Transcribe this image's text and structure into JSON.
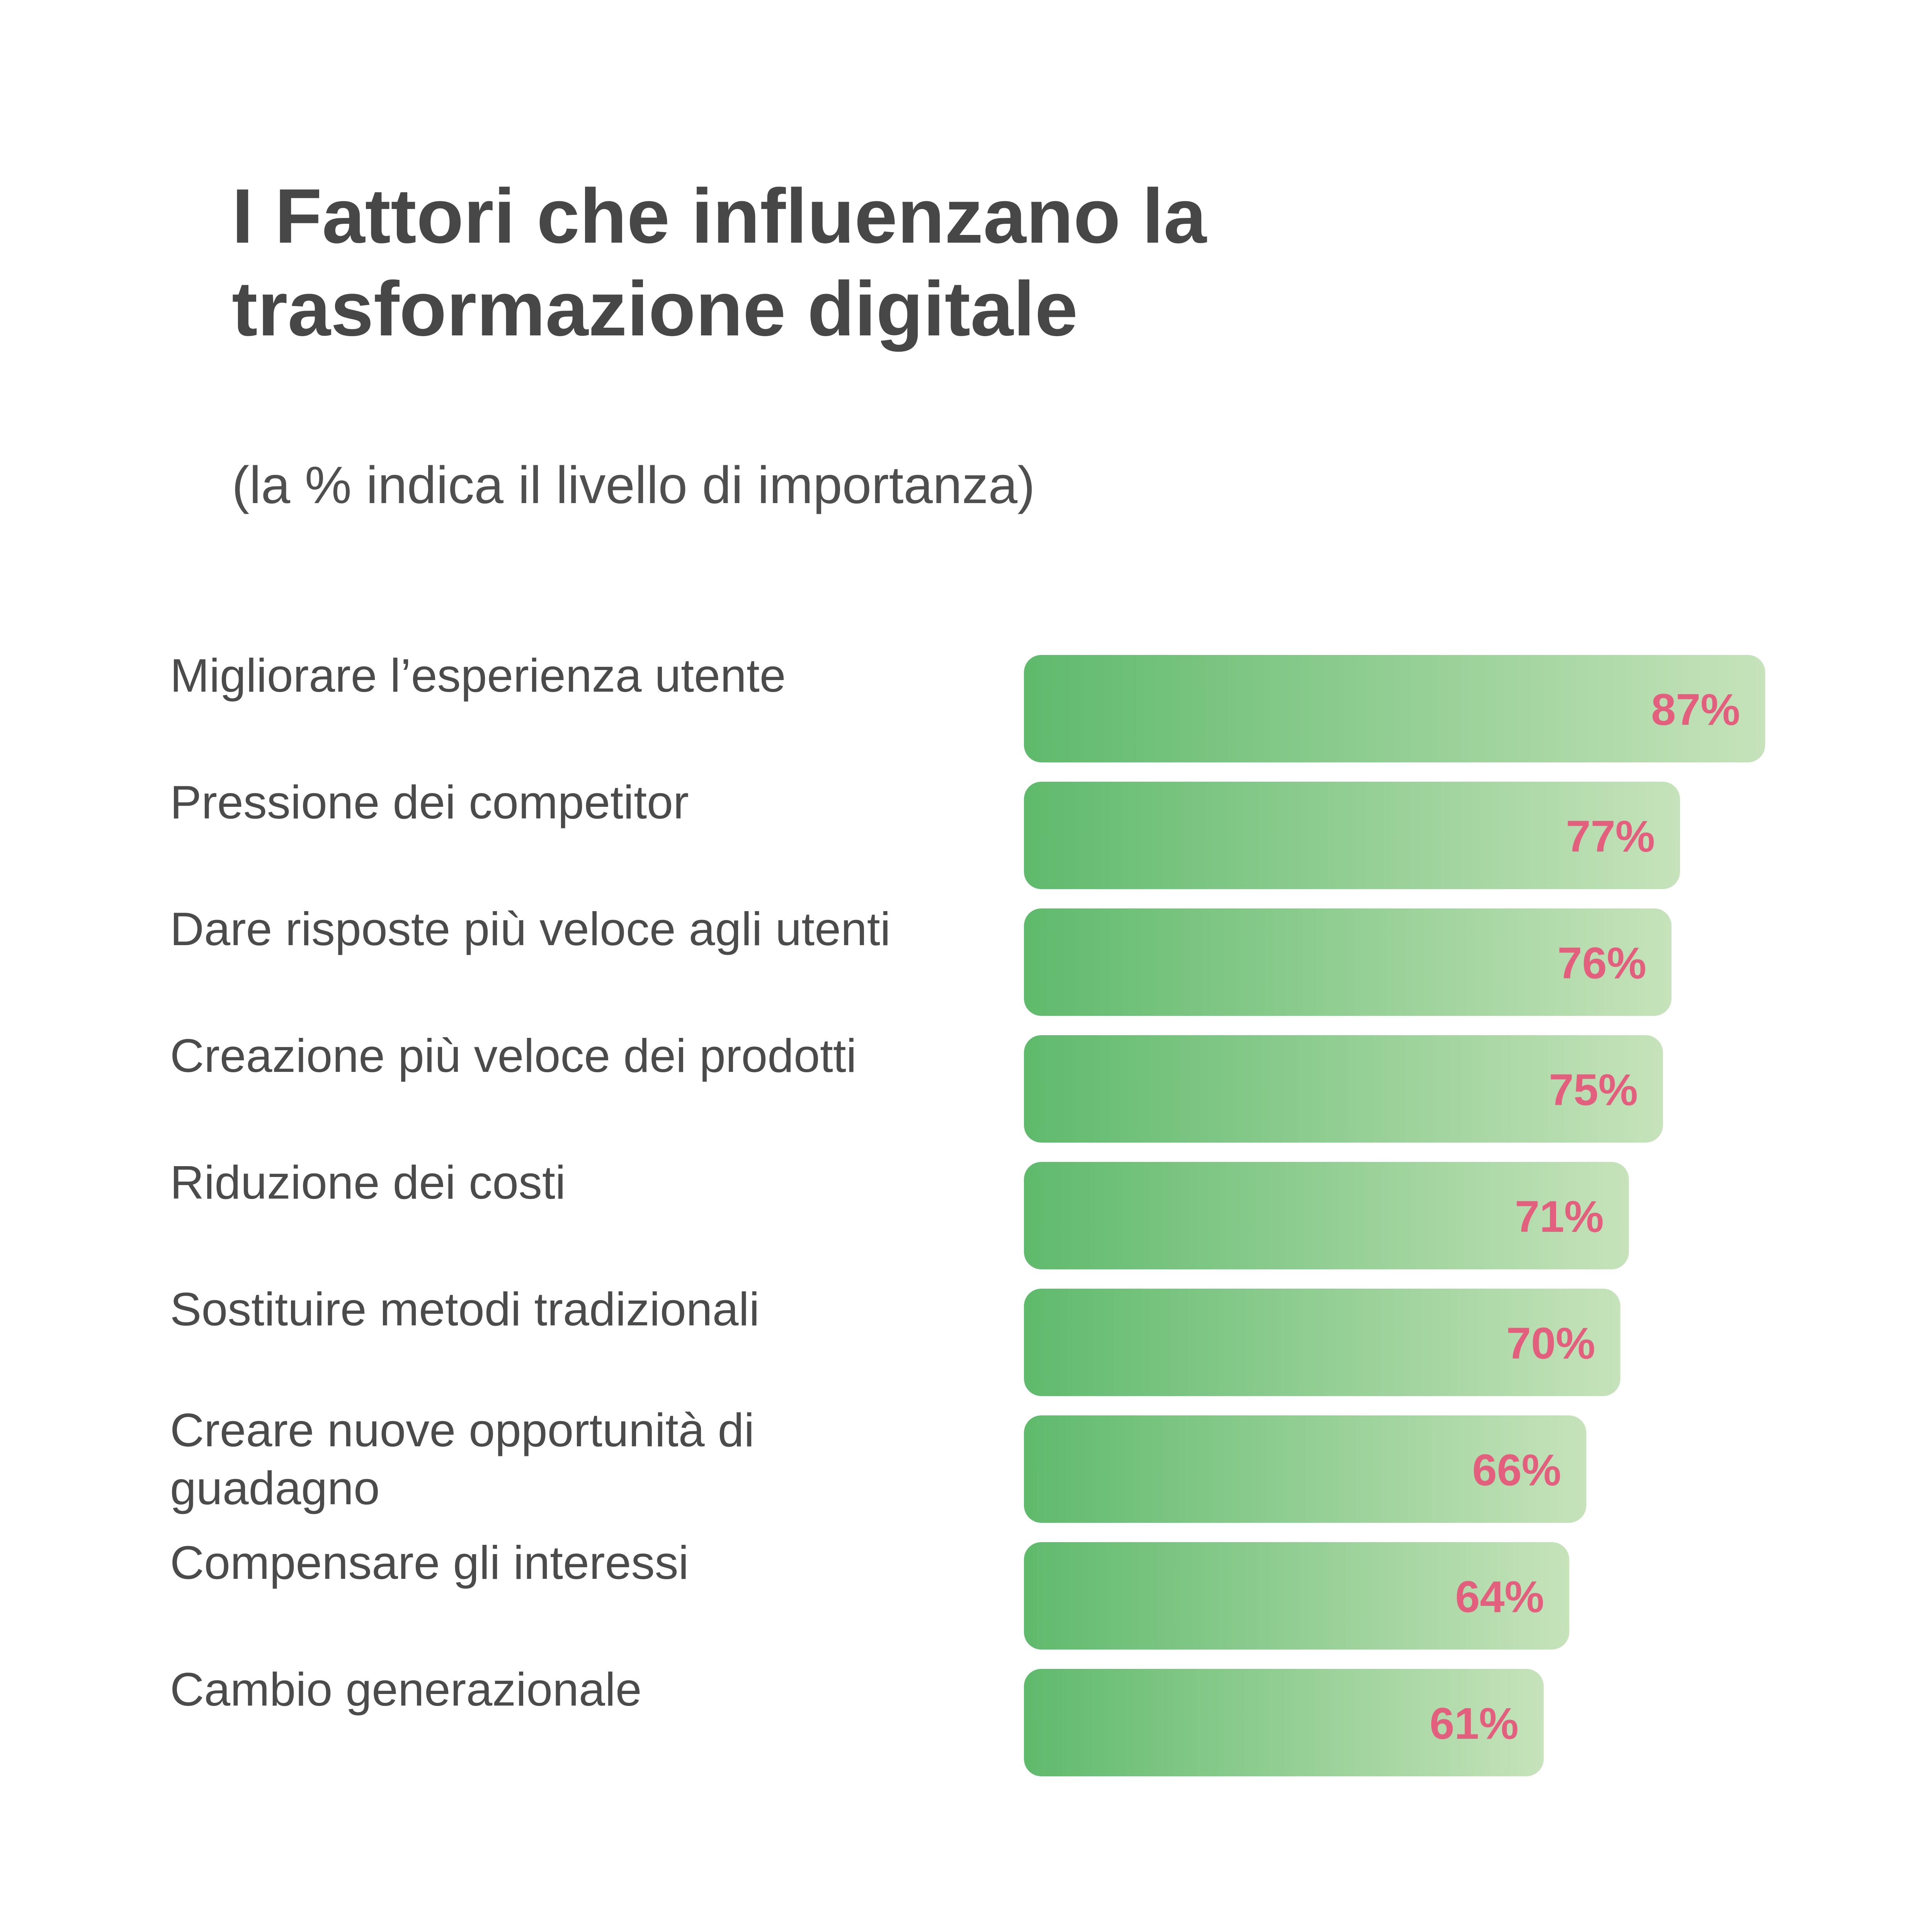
{
  "chart_data": {
    "type": "bar",
    "orientation": "horizontal",
    "title": "I Fattori che influenzano la trasformazione digitale",
    "subtitle": "(la % indica il livello di importanza)",
    "categories": [
      [
        "Migliorare l’esperienza utente"
      ],
      [
        "Pressione dei competitor"
      ],
      [
        "Dare risposte più veloce agli utenti"
      ],
      [
        "Creazione più veloce dei prodotti"
      ],
      [
        "Riduzione dei costi"
      ],
      [
        "Sostituire metodi tradizionali"
      ],
      [
        "Creare nuove opportunità di",
        "guadagno"
      ],
      [
        "Compensare gli interessi"
      ],
      [
        "Cambio generazionale"
      ]
    ],
    "values": [
      87,
      77,
      76,
      75,
      71,
      70,
      66,
      64,
      61
    ],
    "value_labels": [
      "87%",
      "77%",
      "76%",
      "75%",
      "71%",
      "70%",
      "66%",
      "64%",
      "61%"
    ],
    "unit": "%",
    "xlim": [
      0,
      100
    ],
    "grid": false,
    "legend": "none",
    "colors": {
      "bar_start": "#5fba6c",
      "bar_end": "#c6e3bb",
      "value_text": "#e2607e",
      "label_text": "#4b4b4b",
      "title_text": "#474747"
    }
  }
}
